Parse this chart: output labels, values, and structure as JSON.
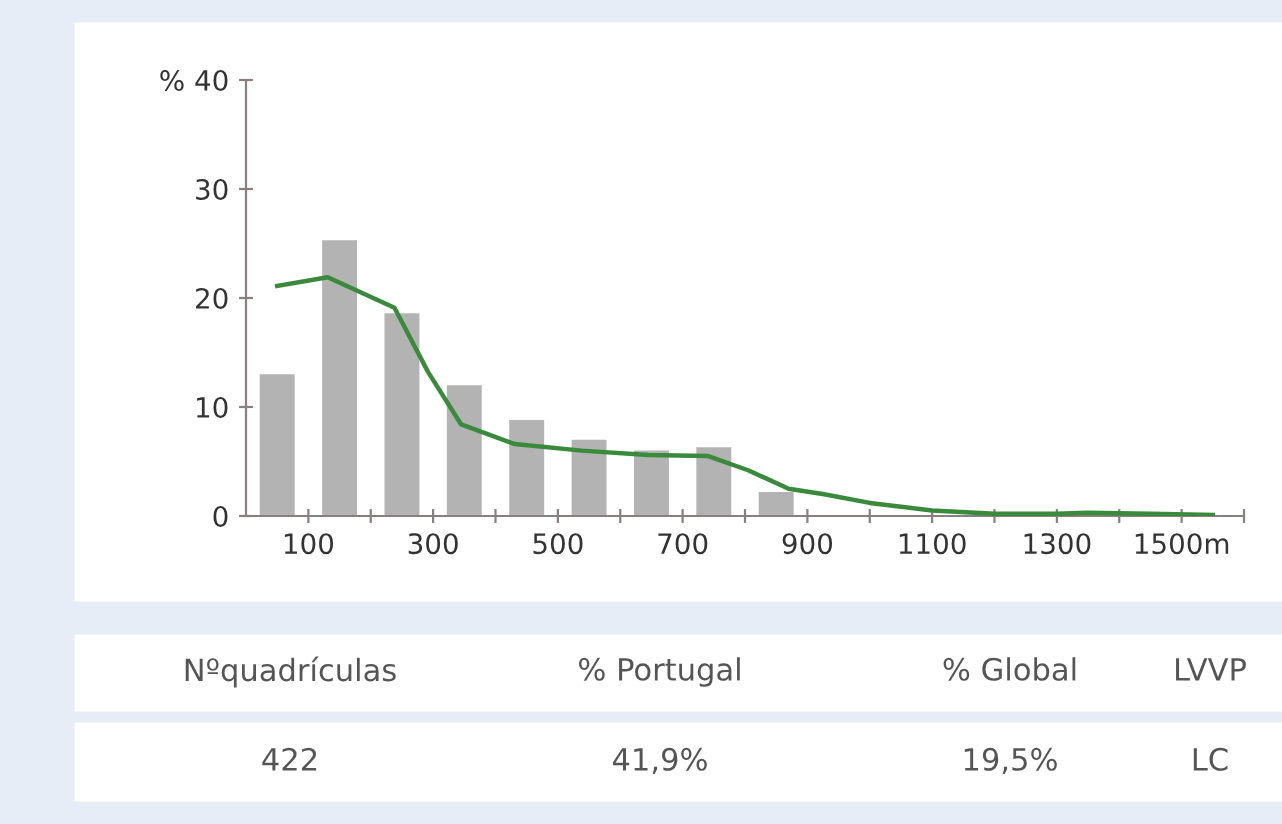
{
  "chart_data": {
    "type": "histogram",
    "bins": [
      0,
      100,
      200,
      300,
      400,
      500,
      600,
      700,
      800,
      900,
      1000,
      1100,
      1200,
      1300,
      1400,
      1500,
      1600
    ],
    "values": [
      13,
      25.3,
      18.6,
      12,
      8.8,
      7,
      6,
      6.3,
      2.2,
      0,
      null,
      0,
      0,
      0,
      0,
      0
    ],
    "color": "#b3b3b3",
    "series": [
      {
        "type": "line",
        "color": "#3a8a3c",
        "x": [
          50,
          131,
          238,
          292,
          345,
          431,
          538,
          645,
          741,
          805,
          870,
          927,
          1000,
          1100,
          1200,
          1300,
          1350,
          1450,
          1550
        ],
        "values": [
          21.1,
          21.9,
          19.1,
          13.2,
          8.4,
          6.6,
          6.0,
          5.6,
          5.5,
          4.2,
          2.5,
          2.0,
          1.2,
          0.5,
          0.2,
          0.2,
          0.3,
          0.2,
          0.1
        ]
      }
    ],
    "xlim": [
      0,
      1600
    ],
    "xticks": [
      {
        "value": 100,
        "label": "100"
      },
      {
        "value": 200,
        "label": null
      },
      {
        "value": 300,
        "label": "300"
      },
      {
        "value": 400,
        "label": null
      },
      {
        "value": 500,
        "label": "500"
      },
      {
        "value": 600,
        "label": null
      },
      {
        "value": 700,
        "label": "700"
      },
      {
        "value": 800,
        "label": null
      },
      {
        "value": 900,
        "label": "900"
      },
      {
        "value": 1000,
        "label": null
      },
      {
        "value": 1100,
        "label": "1100"
      },
      {
        "value": 1200,
        "label": null
      },
      {
        "value": 1300,
        "label": "1300"
      },
      {
        "value": 1400,
        "label": null
      },
      {
        "value": 1500,
        "label": "1500m"
      },
      {
        "value": 1600,
        "label": null
      }
    ],
    "ylim": [
      0,
      40
    ],
    "yticks": [
      0,
      10,
      20,
      30,
      {
        "value": 40,
        "label": "% 40"
      }
    ],
    "grid": false,
    "annotations": [
      "Nºquadrículas",
      "% Portugal",
      "% Global",
      "LVVP",
      "422",
      "41,9%",
      "19,5%",
      "LC"
    ]
  }
}
